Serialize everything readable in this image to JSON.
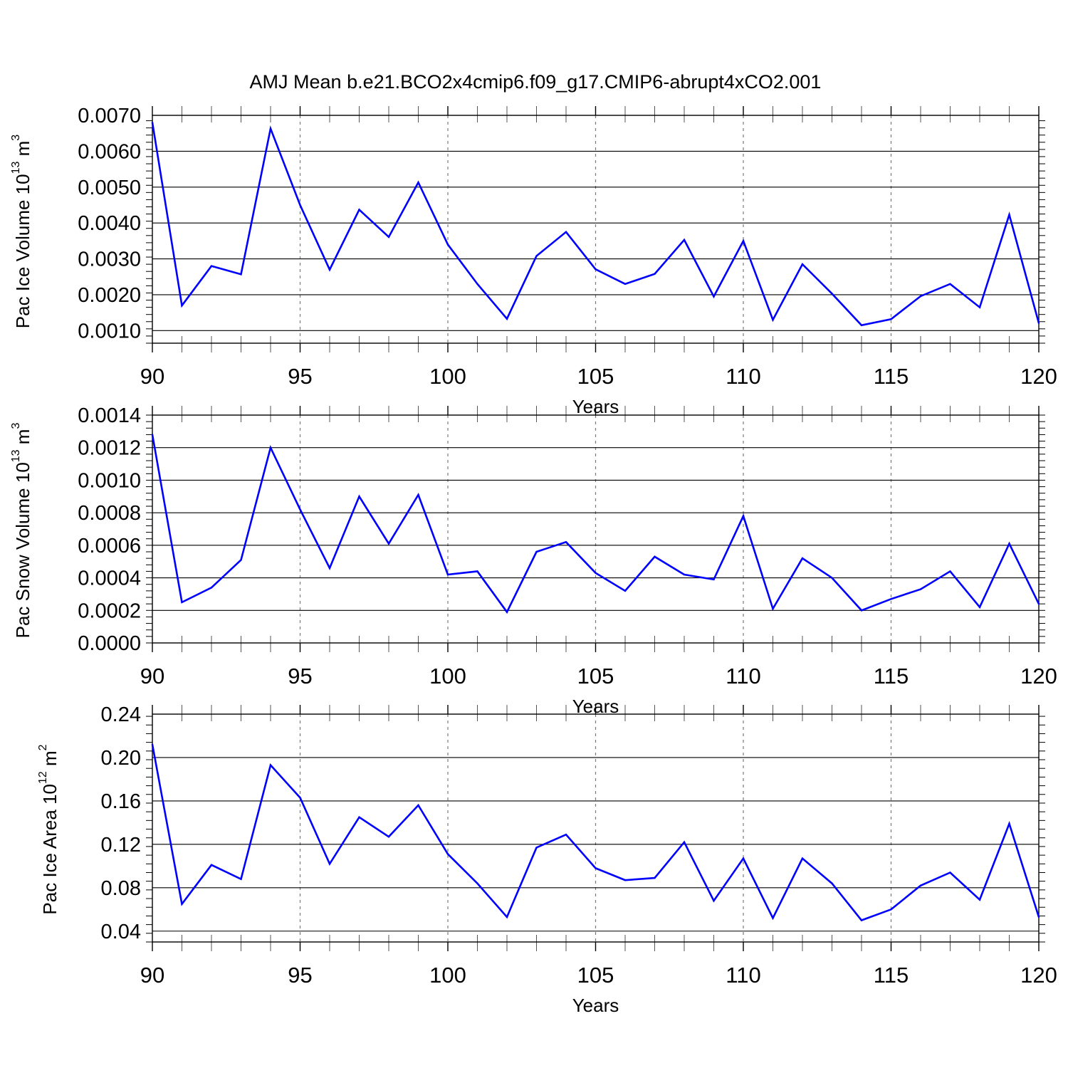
{
  "figure": {
    "title": "AMJ Mean b.e21.BCO2x4cmip6.f09_g17.CMIP6-abrupt4xCO2.001",
    "series_color": "#0000ff"
  },
  "chart_data": [
    {
      "type": "line",
      "title": "AMJ Mean b.e21.BCO2x4cmip6.f09_g17.CMIP6-abrupt4xCO2.001",
      "xlabel": "Years",
      "ylabel": {
        "main": "Pac Ice Volume 10",
        "exp": "13",
        "unit": " m",
        "unit_exp": "3"
      },
      "xlim": [
        90,
        120
      ],
      "ylim": [
        0.00065,
        0.007
      ],
      "xticks": [
        90,
        95,
        100,
        105,
        110,
        115,
        120
      ],
      "xtick_labels": [
        "90",
        "95",
        "100",
        "105",
        "110",
        "115",
        "120"
      ],
      "yticks": [
        0.001,
        0.002,
        0.003,
        0.004,
        0.005,
        0.006,
        0.007
      ],
      "ytick_labels": [
        "0.0010",
        "0.0020",
        "0.0030",
        "0.0040",
        "0.0050",
        "0.0060",
        "0.0070"
      ],
      "yminor_step": 0.0002,
      "grid": "dashed vertical at major x ticks",
      "x": [
        90,
        91,
        92,
        93,
        94,
        95,
        96,
        97,
        98,
        99,
        100,
        101,
        102,
        103,
        104,
        105,
        106,
        107,
        108,
        109,
        110,
        111,
        112,
        113,
        114,
        115,
        116,
        117,
        118,
        119,
        120
      ],
      "values": [
        0.0068,
        0.0017,
        0.0028,
        0.00257,
        0.00663,
        0.0045,
        0.0027,
        0.00437,
        0.00361,
        0.00513,
        0.0034,
        0.0023,
        0.00133,
        0.00308,
        0.00375,
        0.00271,
        0.0023,
        0.00258,
        0.00353,
        0.00195,
        0.0035,
        0.0013,
        0.00285,
        0.00203,
        0.00115,
        0.00132,
        0.00196,
        0.0023,
        0.00165,
        0.00423,
        0.00121
      ]
    },
    {
      "type": "line",
      "xlabel": "Years",
      "ylabel": {
        "main": "Pac Snow Volume 10",
        "exp": "13",
        "unit": " m",
        "unit_exp": "3"
      },
      "xlim": [
        90,
        120
      ],
      "ylim": [
        0,
        0.0014
      ],
      "xticks": [
        90,
        95,
        100,
        105,
        110,
        115,
        120
      ],
      "xtick_labels": [
        "90",
        "95",
        "100",
        "105",
        "110",
        "115",
        "120"
      ],
      "yticks": [
        0,
        0.0002,
        0.0004,
        0.0006,
        0.0008,
        0.001,
        0.0012,
        0.0014
      ],
      "ytick_labels": [
        "0.0000",
        "0.0002",
        "0.0004",
        "0.0006",
        "0.0008",
        "0.0010",
        "0.0012",
        "0.0014"
      ],
      "yminor_step": 4e-05,
      "grid": "dashed vertical at major x ticks",
      "x": [
        90,
        91,
        92,
        93,
        94,
        95,
        96,
        97,
        98,
        99,
        100,
        101,
        102,
        103,
        104,
        105,
        106,
        107,
        108,
        109,
        110,
        111,
        112,
        113,
        114,
        115,
        116,
        117,
        118,
        119,
        120
      ],
      "values": [
        0.00128,
        0.00025,
        0.00034,
        0.00051,
        0.0012,
        0.00082,
        0.00046,
        0.0009,
        0.00061,
        0.00091,
        0.00042,
        0.00044,
        0.00019,
        0.00056,
        0.00062,
        0.00043,
        0.00032,
        0.00053,
        0.00042,
        0.00039,
        0.00078,
        0.00021,
        0.00052,
        0.0004,
        0.0002,
        0.00027,
        0.00033,
        0.00044,
        0.00022,
        0.00061,
        0.00024
      ]
    },
    {
      "type": "line",
      "xlabel": "Years",
      "ylabel": {
        "main": "Pac Ice Area 10",
        "exp": "12",
        "unit": " m",
        "unit_exp": "2"
      },
      "xlim": [
        90,
        120
      ],
      "ylim": [
        0.03,
        0.24
      ],
      "xticks": [
        90,
        95,
        100,
        105,
        110,
        115,
        120
      ],
      "xtick_labels": [
        "90",
        "95",
        "100",
        "105",
        "110",
        "115",
        "120"
      ],
      "yticks": [
        0.04,
        0.08,
        0.12,
        0.16,
        0.2,
        0.24
      ],
      "ytick_labels": [
        "0.04",
        "0.08",
        "0.12",
        "0.16",
        "0.20",
        "0.24"
      ],
      "yminor_step": 0.008,
      "grid": "dashed vertical at major x ticks",
      "x": [
        90,
        91,
        92,
        93,
        94,
        95,
        96,
        97,
        98,
        99,
        100,
        101,
        102,
        103,
        104,
        105,
        106,
        107,
        108,
        109,
        110,
        111,
        112,
        113,
        114,
        115,
        116,
        117,
        118,
        119,
        120
      ],
      "values": [
        0.212,
        0.065,
        0.101,
        0.088,
        0.193,
        0.163,
        0.102,
        0.145,
        0.127,
        0.156,
        0.111,
        0.084,
        0.053,
        0.117,
        0.129,
        0.098,
        0.087,
        0.089,
        0.122,
        0.068,
        0.107,
        0.052,
        0.107,
        0.084,
        0.05,
        0.06,
        0.082,
        0.094,
        0.069,
        0.139,
        0.053
      ]
    }
  ]
}
